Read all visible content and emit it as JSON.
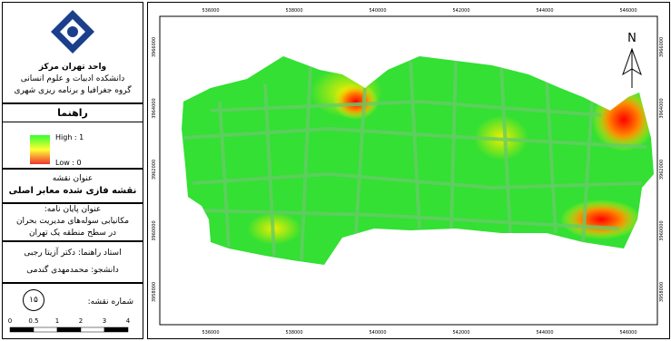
{
  "header": {
    "lines": [
      "واحد تهران مرکز",
      "دانشکده ادبیات و علوم انسانی",
      "گروه جغرافیا و برنامه ریزی شهری"
    ]
  },
  "legend": {
    "title": "راهنما",
    "high": "High : 1",
    "low": "Low : 0"
  },
  "map_title": {
    "label": "عنوان نقشه",
    "text": "نقشه فازی شده معابر اصلی"
  },
  "thesis": {
    "label": "عنوان پایان نامه:",
    "lines": [
      "مکانیابی سوله‌های مدیریت بحران",
      "در سطح منطقه‌ یک تهران"
    ]
  },
  "advisor": "استاد راهنما: دکتر آزیتا رجبی",
  "student": "دانشجو: محمدمهدی گندمی",
  "map_number": {
    "label": "شماره نقشه:",
    "value": "۱۵"
  },
  "scale_bar": {
    "labels": [
      "0",
      "0.5",
      "1",
      "2",
      "3",
      "4"
    ]
  },
  "north": "N",
  "coordinates": {
    "x_labels": [
      "536000",
      "538000",
      "540000",
      "542000",
      "544000",
      "546000"
    ],
    "y_labels": [
      "3966000",
      "3964000",
      "3962000",
      "3960000",
      "3958000"
    ]
  }
}
